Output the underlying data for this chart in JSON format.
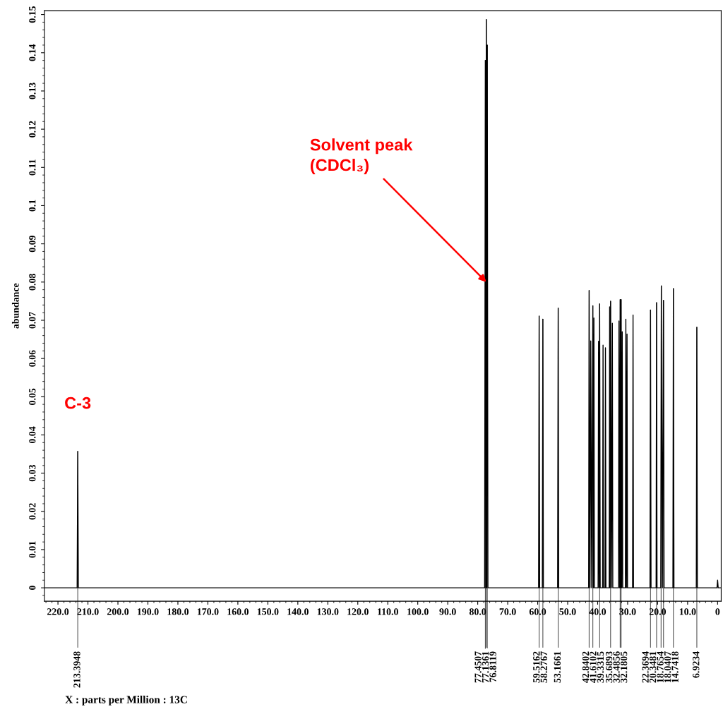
{
  "chart_data": {
    "type": "line",
    "ylabel": "abundance",
    "xlim": [
      224.5,
      -1.2
    ],
    "ylim": [
      -0.0035,
      0.151
    ],
    "xticks": [
      {
        "value": 220,
        "label": "220.0"
      },
      {
        "value": 210,
        "label": "210.0"
      },
      {
        "value": 200,
        "label": "200.0"
      },
      {
        "value": 190,
        "label": "190.0"
      },
      {
        "value": 180,
        "label": "180.0"
      },
      {
        "value": 170,
        "label": "170.0"
      },
      {
        "value": 160,
        "label": "160.0"
      },
      {
        "value": 150,
        "label": "150.0"
      },
      {
        "value": 140,
        "label": "140.0"
      },
      {
        "value": 130,
        "label": "130.0"
      },
      {
        "value": 120,
        "label": "120.0"
      },
      {
        "value": 110,
        "label": "110.0"
      },
      {
        "value": 100,
        "label": "100.0"
      },
      {
        "value": 90,
        "label": "90.0"
      },
      {
        "value": 80,
        "label": "80.0"
      },
      {
        "value": 70,
        "label": "70.0"
      },
      {
        "value": 60,
        "label": "60.0"
      },
      {
        "value": 50,
        "label": "50.0"
      },
      {
        "value": 40,
        "label": "40.0"
      },
      {
        "value": 30,
        "label": "30.0"
      },
      {
        "value": 20,
        "label": "20.0"
      },
      {
        "value": 10,
        "label": "10.0"
      },
      0
    ],
    "yticks": [
      0,
      0.01,
      0.02,
      0.03,
      0.04,
      0.05,
      0.06,
      0.07,
      0.08,
      0.09,
      0.1,
      0.11,
      0.12,
      0.13,
      0.14,
      0.15
    ],
    "grid": false,
    "line_style": "solid",
    "marker": "none",
    "annotations": [
      {
        "text": "C-3",
        "x": 213.3948,
        "y": 0.0357
      },
      {
        "text": "Solvent peak\n(CDCl₃)",
        "x": 77.1361,
        "y": 0.08
      },
      {
        "text": "213.3948",
        "x": 213.3948,
        "y": 0.0357
      },
      {
        "text": "77.4507",
        "x": 77.4507,
        "y": 0.138
      },
      {
        "text": "77.1361",
        "x": 77.1361,
        "y": 0.1487
      },
      {
        "text": "76.8119",
        "x": 76.8119,
        "y": 0.142
      },
      {
        "text": "59.5162",
        "x": 59.5162,
        "y": 0.0711
      },
      {
        "text": "58.2767",
        "x": 58.2767,
        "y": 0.0703
      },
      {
        "text": "53.1661",
        "x": 53.1661,
        "y": 0.0732
      },
      {
        "text": "42.8402",
        "x": 42.8402,
        "y": 0.0778
      },
      {
        "text": "41.6102",
        "x": 41.6102,
        "y": 0.0738
      },
      {
        "text": "39.3315",
        "x": 39.3315,
        "y": 0.0743
      },
      {
        "text": "35.6893",
        "x": 35.6893,
        "y": 0.075
      },
      {
        "text": "32.4856",
        "x": 32.4856,
        "y": 0.0754
      },
      {
        "text": "32.1805",
        "x": 32.1805,
        "y": 0.0754
      },
      {
        "text": "22.3694",
        "x": 22.3694,
        "y": 0.0727
      },
      {
        "text": "20.3481",
        "x": 20.3481,
        "y": 0.0746
      },
      {
        "text": "18.7654",
        "x": 18.7654,
        "y": 0.079
      },
      {
        "text": "18.0407",
        "x": 18.0407,
        "y": 0.0752
      },
      {
        "text": "14.7418",
        "x": 14.7418,
        "y": 0.0783
      },
      {
        "text": "6.9234",
        "x": 6.9234,
        "y": 0.0682
      },
      "X : parts per Million : 13C"
    ],
    "series": [
      {
        "color": "#000000",
        "x": [
          224.5,
          213.6,
          213.3948,
          213.2,
          77.7,
          77.4507,
          77.3,
          77.1361,
          77.0,
          76.8119,
          76.6,
          59.7,
          59.5162,
          59.35,
          58.45,
          58.2767,
          58.1,
          53.35,
          53.1661,
          53.0,
          43.0,
          42.8402,
          42.55,
          42.3,
          42.0,
          41.6102,
          41.45,
          41.25,
          41.1,
          39.85,
          39.7,
          39.5,
          39.3315,
          39.15,
          38.35,
          38.2,
          38.05,
          37.55,
          37.4,
          37.25,
          36.15,
          36.0,
          35.85,
          35.6893,
          35.4,
          35.1,
          34.95,
          33.05,
          32.9,
          32.65,
          32.4856,
          32.33,
          32.1805,
          32.0,
          31.8,
          31.65,
          30.75,
          30.6,
          30.4,
          30.2,
          30.05,
          28.35,
          28.2,
          28.05,
          22.55,
          22.3694,
          22.2,
          20.5,
          20.3481,
          20.2,
          18.95,
          18.7654,
          18.4,
          18.0407,
          17.85,
          14.9,
          14.7418,
          14.55,
          7.1,
          6.9234,
          6.75,
          0.2,
          0.0,
          -0.2,
          -1.2
        ],
        "values": [
          0,
          0,
          0.0357,
          0,
          0,
          0.138,
          0,
          0.1487,
          0,
          0.142,
          0,
          0,
          0.0711,
          0,
          0,
          0.0703,
          0,
          0,
          0.0732,
          0,
          0,
          0.0778,
          0,
          0.0646,
          0,
          0.0738,
          0,
          0.0706,
          0,
          0,
          0.0645,
          0,
          0.0743,
          0,
          0,
          0.0635,
          0,
          0,
          0.0628,
          0,
          0,
          0.0735,
          0,
          0.075,
          0,
          0.0692,
          0,
          0,
          0.0698,
          0,
          0.0754,
          0,
          0.0754,
          0,
          0.067,
          0,
          0,
          0.0703,
          0,
          0.0664,
          0,
          0,
          0.0714,
          0,
          0,
          0.0727,
          0,
          0,
          0.0746,
          0,
          0,
          0.079,
          0,
          0.0752,
          0,
          0,
          0.0783,
          0,
          0,
          0.0682,
          0,
          0,
          0.002,
          0,
          0
        ]
      }
    ]
  }
}
